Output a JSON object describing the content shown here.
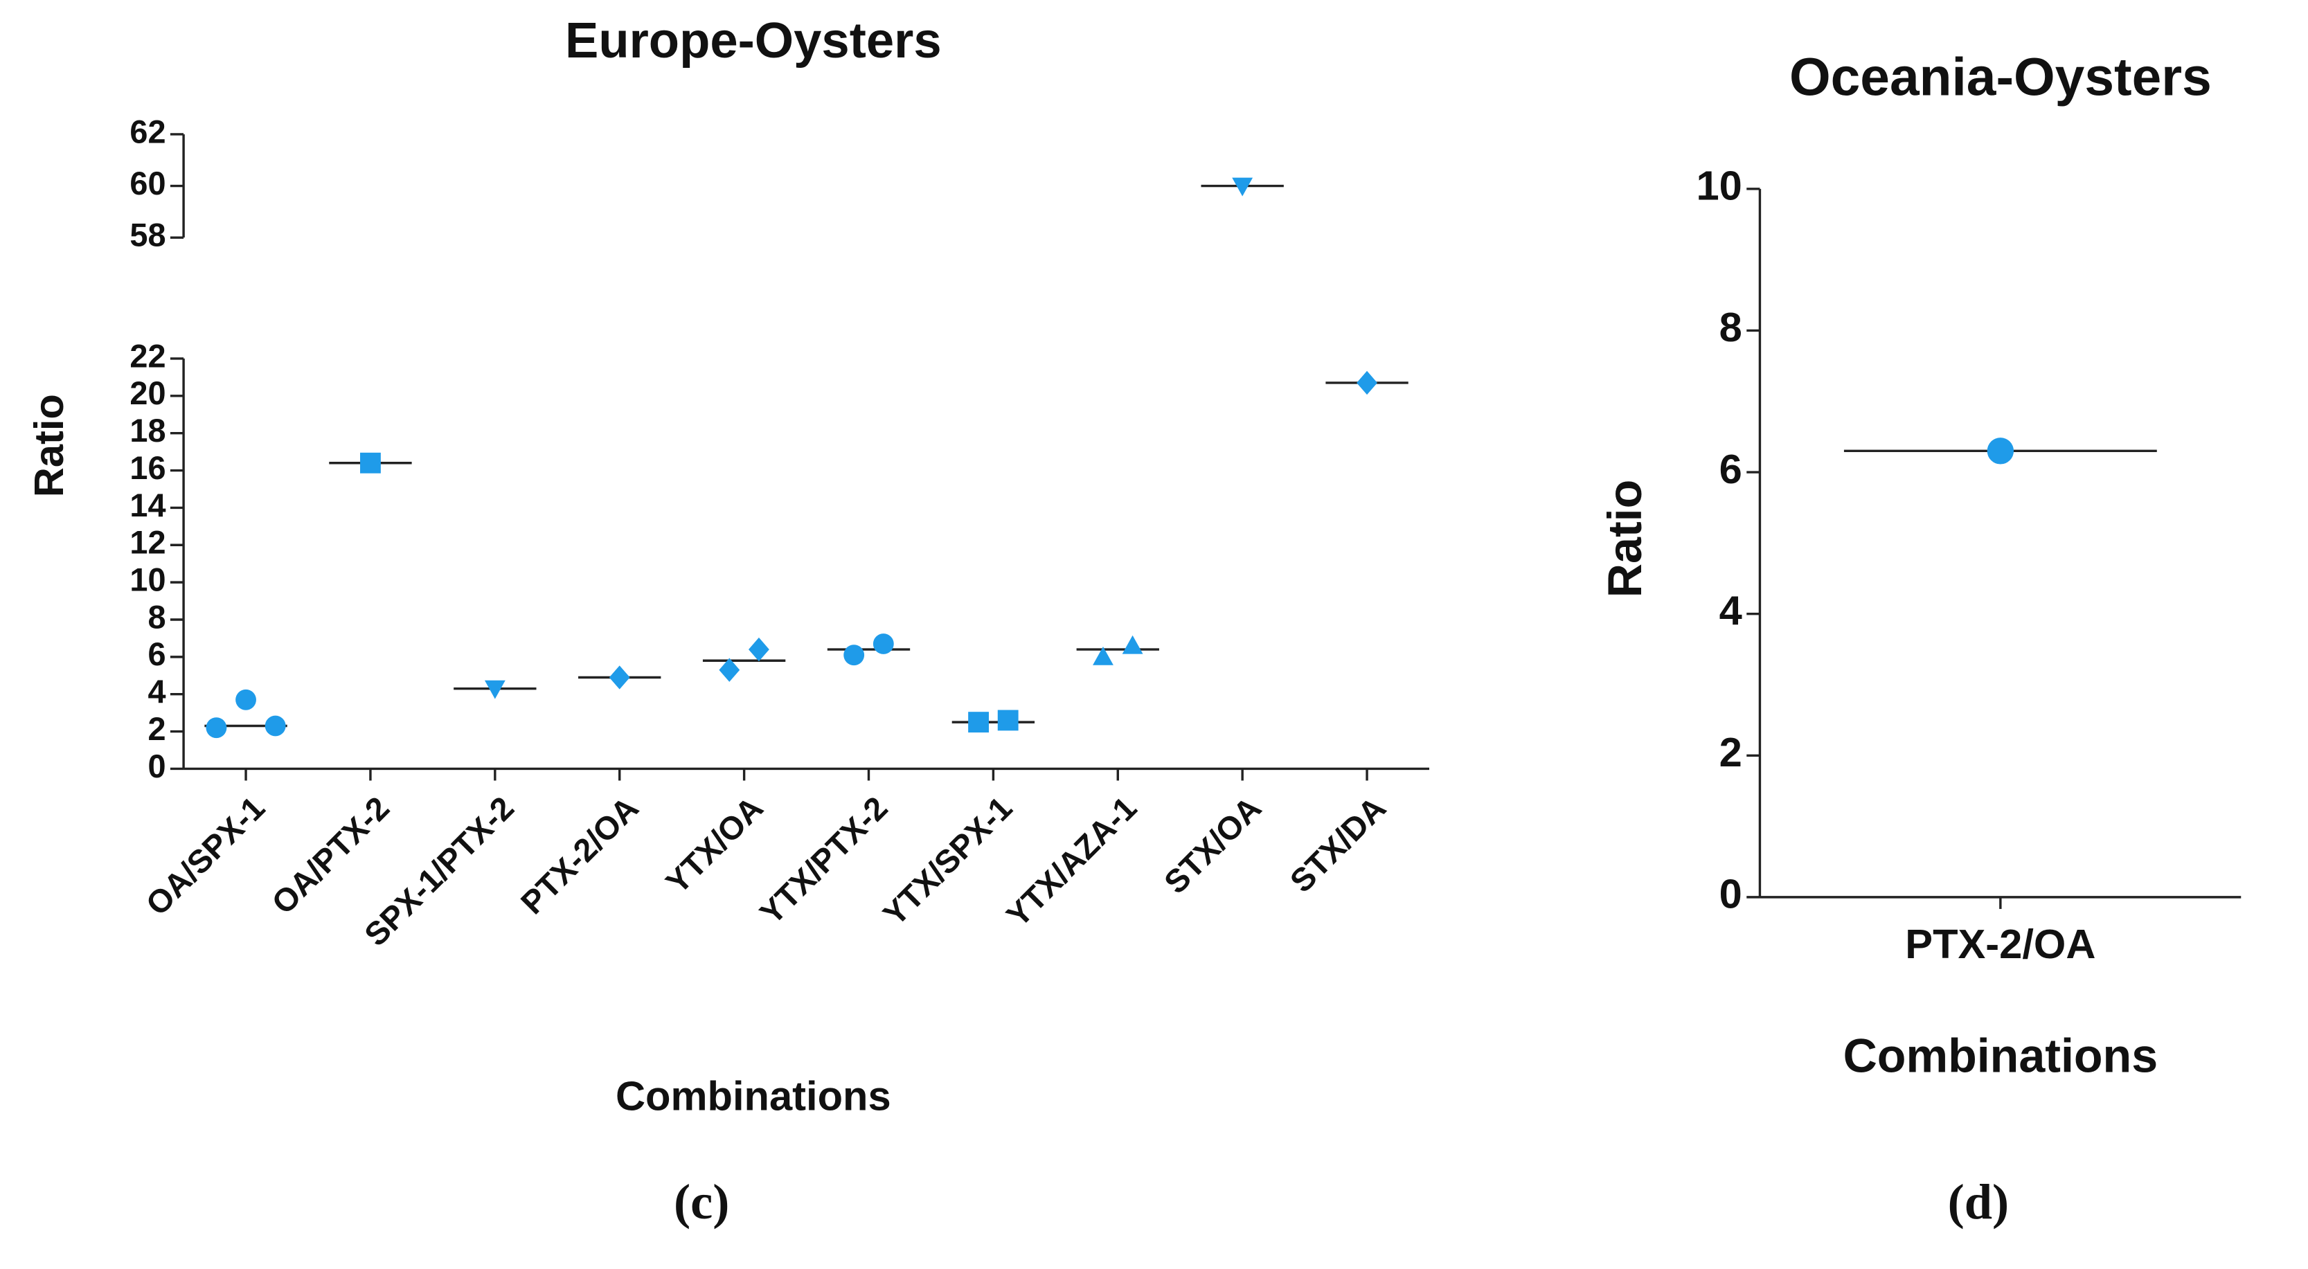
{
  "chart_data": [
    {
      "type": "dot",
      "title": "Europe-Oysters",
      "y_label": "Ratio",
      "x_label": "Combinations",
      "panel_label": "(c)",
      "categories": [
        "OA/SPX-1",
        "OA/PTX-2",
        "SPX-1/PTX-2",
        "PTX-2/OA",
        "YTX/OA",
        "YTX/PTX-2",
        "YTX/SPX-1",
        "YTX/AZA-1",
        "STX/OA",
        "STX/DA"
      ],
      "values": [
        [
          2.2,
          3.7,
          2.3
        ],
        [
          16.4
        ],
        [
          4.3
        ],
        [
          4.9
        ],
        [
          5.3,
          6.4
        ],
        [
          6.1,
          6.7
        ],
        [
          2.5,
          2.6
        ],
        [
          6.0,
          6.6
        ],
        [
          60
        ],
        [
          20.7
        ]
      ],
      "medians": [
        2.3,
        16.4,
        4.3,
        4.9,
        5.8,
        6.4,
        2.5,
        6.4,
        60,
        20.7
      ],
      "markers": [
        "circle",
        "square",
        "triangle-down",
        "diamond",
        "diamond",
        "circle",
        "square",
        "triangle-up",
        "triangle-down",
        "diamond"
      ],
      "color": "#1f9be9",
      "ylim": [
        0,
        22
      ],
      "yticks": [
        0,
        2,
        4,
        6,
        8,
        10,
        12,
        14,
        16,
        18,
        20,
        22
      ],
      "ylim_upper": [
        58,
        62
      ],
      "yticks_upper": [
        58,
        60,
        62
      ]
    },
    {
      "type": "dot",
      "title": "Oceania-Oysters",
      "y_label": "Ratio",
      "x_label": "Combinations",
      "panel_label": "(d)",
      "categories": [
        "PTX-2/OA"
      ],
      "values": [
        [
          6.3
        ]
      ],
      "medians": [
        6.3
      ],
      "markers": [
        "circle"
      ],
      "color": "#1f9be9",
      "ylim": [
        0,
        10
      ],
      "yticks": [
        0,
        2,
        4,
        6,
        8,
        10
      ]
    }
  ]
}
